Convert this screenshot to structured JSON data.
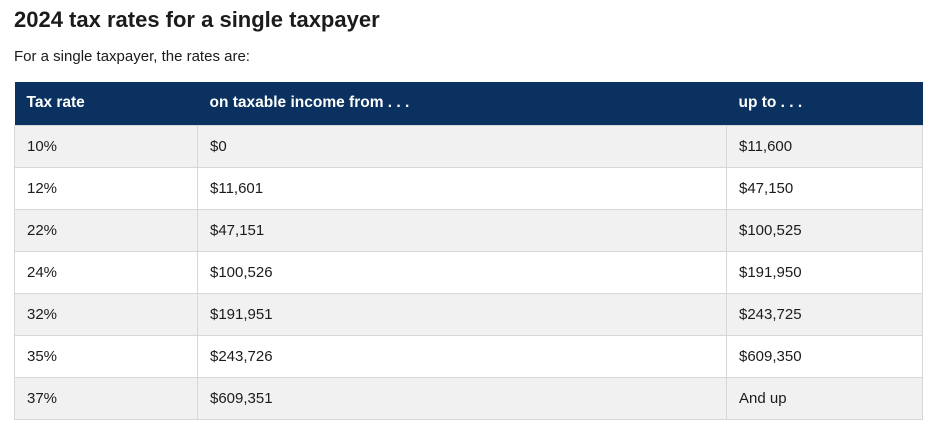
{
  "page": {
    "title": "2024 tax rates for a single taxpayer",
    "subtitle": "For a single taxpayer, the rates are:"
  },
  "table": {
    "columns": [
      "Tax rate",
      "on taxable income from . . .",
      "up to . . ."
    ],
    "rows": [
      {
        "tax_rate": "10%",
        "income_from": "$0",
        "up_to": "$11,600"
      },
      {
        "tax_rate": "12%",
        "income_from": "$11,601",
        "up_to": "$47,150"
      },
      {
        "tax_rate": "22%",
        "income_from": "$47,151",
        "up_to": "$100,525"
      },
      {
        "tax_rate": "24%",
        "income_from": "$100,526",
        "up_to": "$191,950"
      },
      {
        "tax_rate": "32%",
        "income_from": "$191,951",
        "up_to": "$243,725"
      },
      {
        "tax_rate": "35%",
        "income_from": "$243,726",
        "up_to": "$609,350"
      },
      {
        "tax_rate": "37%",
        "income_from": "$609,351",
        "up_to": "And up"
      }
    ]
  },
  "colors": {
    "header_bg": "#0a315f",
    "header_text": "#ffffff",
    "row_bg": "#ffffff",
    "row_alt_bg": "#f1f1f1",
    "border": "#d6d7d9",
    "text": "#1b1b1b",
    "page_bg": "#ffffff"
  }
}
